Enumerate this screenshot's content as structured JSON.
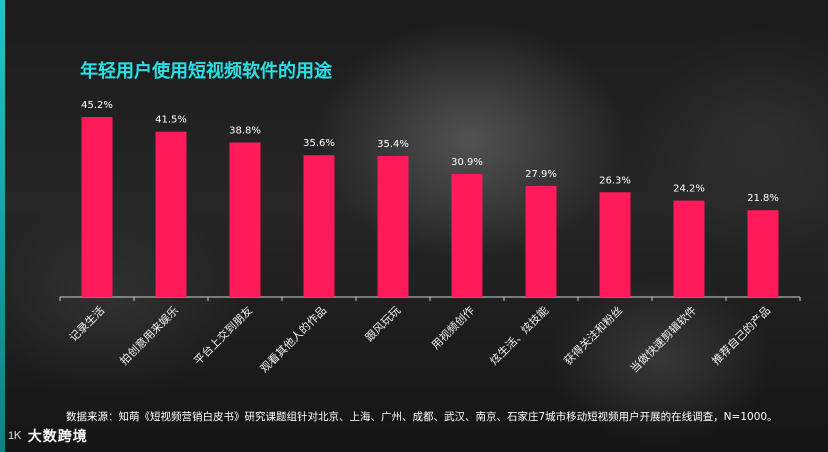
{
  "title": "年轻用户使用短视频软件的用途",
  "footnote": "数据来源：知萌《短视频营销白皮书》研究课题组针对北京、上海、广州、成都、武汉、南京、石家庄7城市移动短视频用户开展的在线调查，N=1000。",
  "brand": {
    "logo": "1Ꮶ",
    "name": "大数跨境"
  },
  "colors": {
    "bar": "#ff1a5a",
    "title": "#27e0e4",
    "axis": "#d0d0d0"
  },
  "chart_data": {
    "type": "bar",
    "title": "年轻用户使用短视频软件的用途",
    "categories": [
      "记录生活",
      "拍创意用来娱乐",
      "平台上交到朋友",
      "观看其他人的作品",
      "跟风玩玩",
      "用视频创作",
      "炫生活、炫技能",
      "获得关注和粉丝",
      "当做快速剪辑软件",
      "推荐自己的产品"
    ],
    "values": [
      45.2,
      41.5,
      38.8,
      35.6,
      35.4,
      30.9,
      27.9,
      26.3,
      24.2,
      21.8
    ],
    "value_labels": [
      "45.2%",
      "41.5%",
      "38.8%",
      "35.6%",
      "35.4%",
      "30.9%",
      "27.9%",
      "26.3%",
      "24.2%",
      "21.8%"
    ],
    "ylim": [
      0,
      50
    ],
    "xlabel": "",
    "ylabel": "",
    "grid": false,
    "legend": "none"
  }
}
